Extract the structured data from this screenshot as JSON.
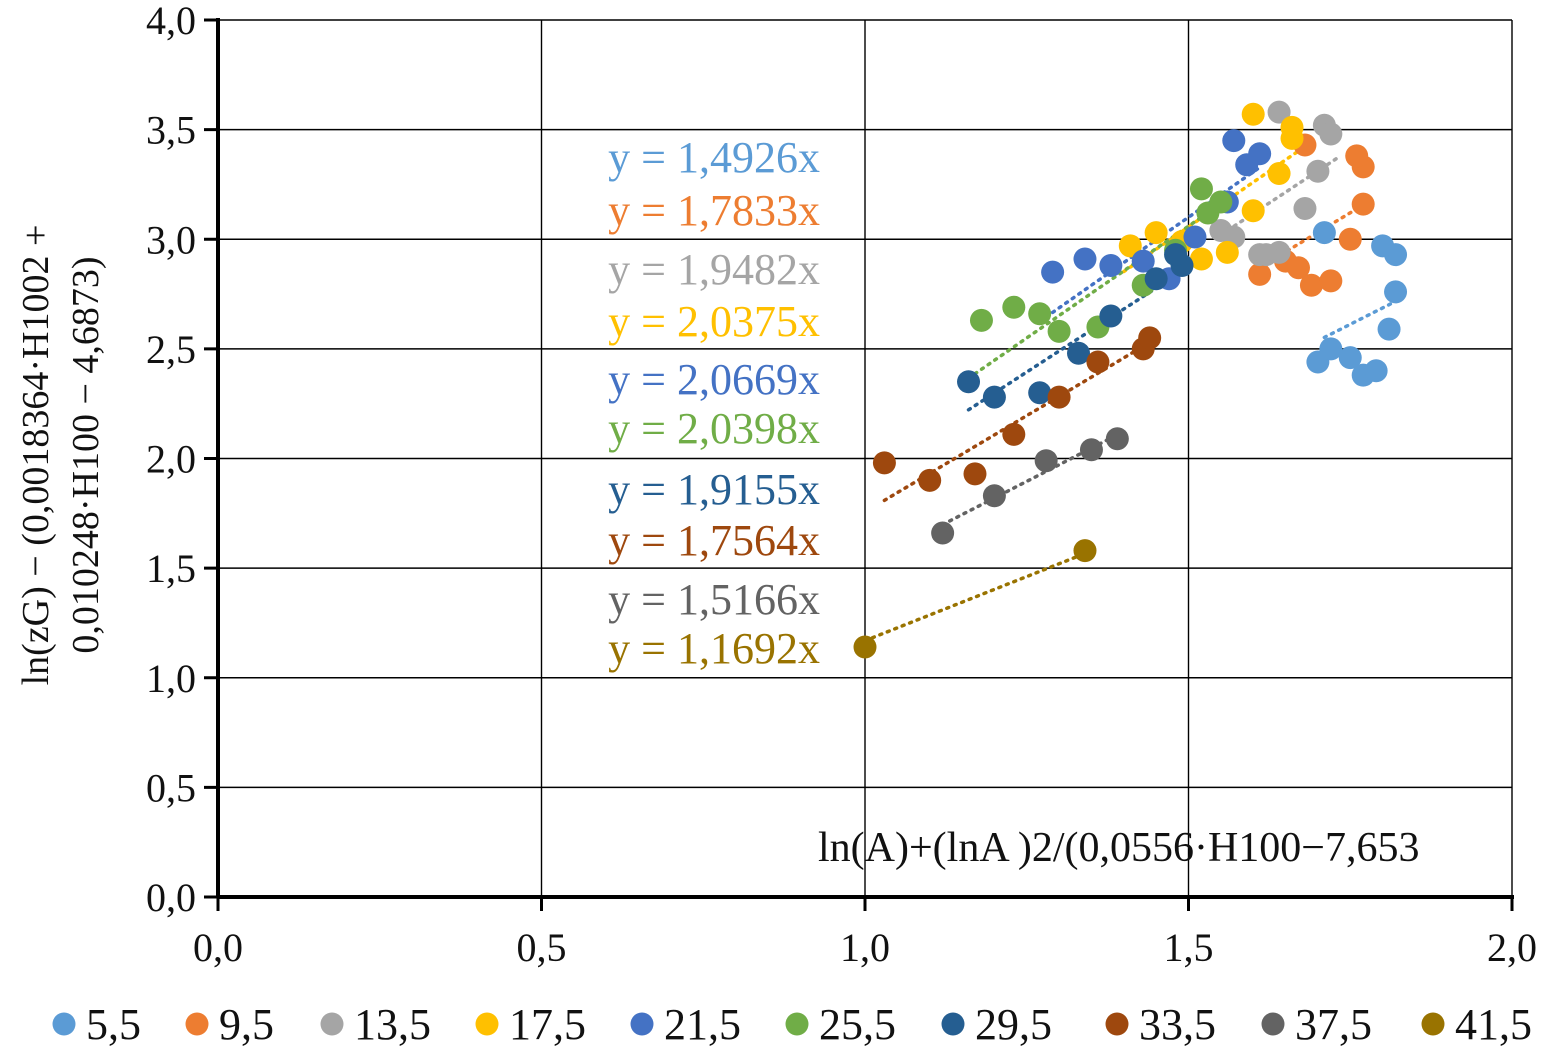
{
  "chart_data": {
    "type": "scatter",
    "title": "",
    "xlabel": "ln(A)+(lnA )2/(0,0556·H100−7,653",
    "ylabel_line1": "ln(zG) − (0,0018364·H1002  +",
    "ylabel_line2": "0,010248·H100  − 4,6873)",
    "xlim": [
      0.0,
      2.0
    ],
    "ylim": [
      0.0,
      4.0
    ],
    "x_ticks": [
      0.0,
      0.5,
      1.0,
      1.5,
      2.0
    ],
    "x_tick_labels": [
      "0,0",
      "0,5",
      "1,0",
      "1,5",
      "2,0"
    ],
    "y_ticks": [
      0.0,
      0.5,
      1.0,
      1.5,
      2.0,
      2.5,
      3.0,
      3.5,
      4.0
    ],
    "y_tick_labels": [
      "0,0",
      "0,5",
      "1,0",
      "1,5",
      "2,0",
      "2,5",
      "3,0",
      "3,5",
      "4,0"
    ],
    "grid": true,
    "legend_position": "bottom",
    "series": [
      {
        "name": "5,5",
        "color": "#5B9BD5",
        "slope": 1.4926,
        "equation": "y = 1,4926x",
        "trend_x": [
          1.71,
          1.83
        ],
        "points": [
          [
            1.7,
            2.44
          ],
          [
            1.72,
            2.5
          ],
          [
            1.75,
            2.46
          ],
          [
            1.77,
            2.38
          ],
          [
            1.79,
            2.4
          ],
          [
            1.81,
            2.59
          ],
          [
            1.82,
            2.76
          ],
          [
            1.82,
            2.93
          ],
          [
            1.8,
            2.97
          ],
          [
            1.71,
            3.03
          ]
        ]
      },
      {
        "name": "9,5",
        "color": "#ED7D31",
        "slope": 1.7833,
        "equation": "y = 1,7833x",
        "trend_x": [
          1.6,
          1.78
        ],
        "points": [
          [
            1.61,
            2.84
          ],
          [
            1.65,
            2.9
          ],
          [
            1.67,
            2.87
          ],
          [
            1.69,
            2.79
          ],
          [
            1.72,
            2.81
          ],
          [
            1.75,
            3.0
          ],
          [
            1.77,
            3.16
          ],
          [
            1.77,
            3.33
          ],
          [
            1.76,
            3.38
          ],
          [
            1.68,
            3.43
          ]
        ]
      },
      {
        "name": "13,5",
        "color": "#A5A5A5",
        "slope": 1.9482,
        "equation": "y = 1,9482x",
        "trend_x": [
          1.55,
          1.73
        ],
        "points": [
          [
            1.55,
            3.04
          ],
          [
            1.57,
            3.01
          ],
          [
            1.61,
            2.93
          ],
          [
            1.64,
            2.94
          ],
          [
            1.68,
            3.14
          ],
          [
            1.7,
            3.31
          ],
          [
            1.71,
            3.52
          ],
          [
            1.72,
            3.48
          ],
          [
            1.64,
            3.58
          ],
          [
            1.62,
            2.93
          ]
        ]
      },
      {
        "name": "17,5",
        "color": "#FFC000",
        "slope": 2.0375,
        "equation": "y = 2,0375x",
        "trend_x": [
          1.4,
          1.68
        ],
        "points": [
          [
            1.41,
            2.97
          ],
          [
            1.45,
            3.03
          ],
          [
            1.49,
            2.99
          ],
          [
            1.52,
            2.91
          ],
          [
            1.56,
            2.94
          ],
          [
            1.6,
            3.13
          ],
          [
            1.64,
            3.3
          ],
          [
            1.66,
            3.46
          ],
          [
            1.66,
            3.51
          ],
          [
            1.6,
            3.57
          ]
        ]
      },
      {
        "name": "21,5",
        "color": "#4472C4",
        "slope": 2.0669,
        "equation": "y = 2,0669x",
        "trend_x": [
          1.29,
          1.61
        ],
        "points": [
          [
            1.29,
            2.85
          ],
          [
            1.34,
            2.91
          ],
          [
            1.38,
            2.88
          ],
          [
            1.43,
            2.9
          ],
          [
            1.47,
            2.82
          ],
          [
            1.51,
            3.01
          ],
          [
            1.56,
            3.17
          ],
          [
            1.59,
            3.34
          ],
          [
            1.61,
            3.39
          ],
          [
            1.57,
            3.45
          ]
        ]
      },
      {
        "name": "25,5",
        "color": "#70AD47",
        "slope": 2.0398,
        "equation": "y = 2,0398x",
        "trend_x": [
          1.17,
          1.56
        ],
        "points": [
          [
            1.18,
            2.63
          ],
          [
            1.23,
            2.69
          ],
          [
            1.27,
            2.66
          ],
          [
            1.3,
            2.58
          ],
          [
            1.36,
            2.6
          ],
          [
            1.43,
            2.79
          ],
          [
            1.48,
            2.95
          ],
          [
            1.53,
            3.12
          ],
          [
            1.55,
            3.17
          ],
          [
            1.52,
            3.23
          ]
        ]
      },
      {
        "name": "29,5",
        "color": "#255E91",
        "slope": 1.9155,
        "equation": "y = 1,9155x",
        "trend_x": [
          1.16,
          1.5
        ],
        "points": [
          [
            1.16,
            2.35
          ],
          [
            1.2,
            2.28
          ],
          [
            1.27,
            2.3
          ],
          [
            1.33,
            2.48
          ],
          [
            1.38,
            2.65
          ],
          [
            1.45,
            2.82
          ],
          [
            1.49,
            2.88
          ],
          [
            1.48,
            2.93
          ]
        ]
      },
      {
        "name": "33,5",
        "color": "#9E480E",
        "slope": 1.7564,
        "equation": "y = 1,7564x",
        "trend_x": [
          1.03,
          1.44
        ],
        "points": [
          [
            1.03,
            1.98
          ],
          [
            1.1,
            1.9
          ],
          [
            1.17,
            1.93
          ],
          [
            1.23,
            2.11
          ],
          [
            1.3,
            2.28
          ],
          [
            1.36,
            2.44
          ],
          [
            1.43,
            2.5
          ],
          [
            1.44,
            2.55
          ]
        ]
      },
      {
        "name": "37,5",
        "color": "#636363",
        "slope": 1.5166,
        "equation": "y = 1,5166x",
        "trend_x": [
          1.12,
          1.39
        ],
        "points": [
          [
            1.12,
            1.66
          ],
          [
            1.2,
            1.83
          ],
          [
            1.28,
            1.99
          ],
          [
            1.35,
            2.04
          ],
          [
            1.39,
            2.09
          ]
        ]
      },
      {
        "name": "41,5",
        "color": "#997300",
        "slope": 1.1692,
        "equation": "y = 1,1692x",
        "trend_x": [
          1.0,
          1.34
        ],
        "points": [
          [
            1.0,
            1.14
          ],
          [
            1.34,
            1.58
          ]
        ]
      }
    ]
  }
}
